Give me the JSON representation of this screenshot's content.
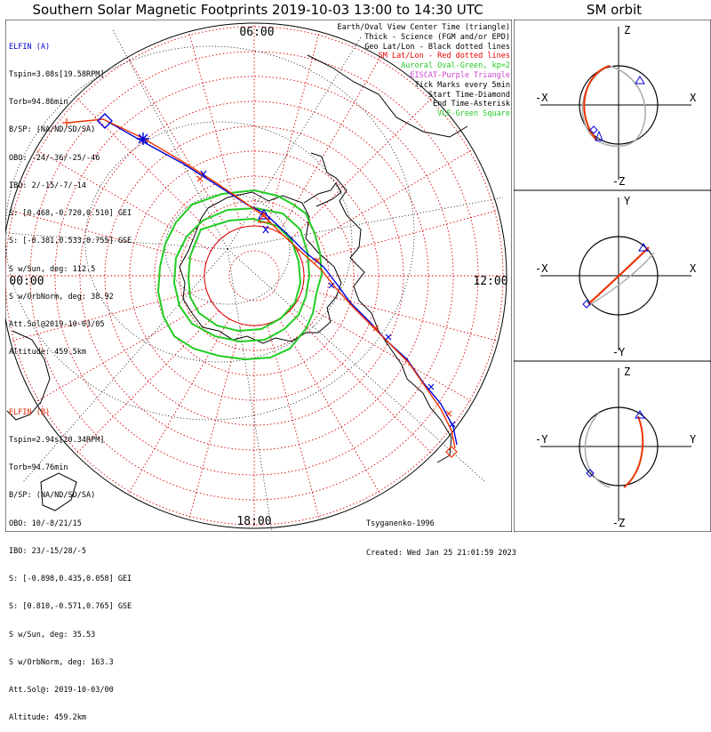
{
  "title": "Southern Solar Magnetic Footprints 2019-10-03 13:00 to 14:30 UTC",
  "side_title": "SM orbit",
  "mlt_labels": {
    "top": "06:00",
    "left": "00:00",
    "right": "12:00",
    "bottom": "18:00"
  },
  "elfin_a": {
    "name": "ELFIN (A)",
    "lines": [
      "Tspin=3.08s[19.58RPM]",
      "Torb=94.86min",
      "B/SP: (NA/ND/SD/SA)",
      "OBO: -24/-36/-25/-46",
      "IBO: 2/-15/-7/-14",
      "S: [0.468,-0.720,0.510] GEI",
      "S: [-0.381,0.533,0.755] GSE",
      "S w/Sun, deg: 112.5",
      "S w/OrbNorm, deg: 38.92",
      "Att.Sol@2019-10-03/05",
      "Altitude: 459.5km"
    ]
  },
  "elfin_b": {
    "name": "ELFIN (B)",
    "lines": [
      "Tspin=2.94s[20.34RPM]",
      "Torb=94.76min",
      "B/SP: (NA/ND/SD/SA)",
      "OBO: 10/-8/21/15",
      "IBO: 23/-15/28/-5",
      "S: [-0.898,0.435,0.058] GEI",
      "S: [0.810,-0.571,0.765] GSE",
      "S w/Sun, deg: 35.53",
      "S w/OrbNorm, deg: 163.3",
      "Att.Sol@: 2019-10-03/00",
      "Altitude: 459.2km"
    ]
  },
  "legend": [
    {
      "text": "Earth/Oval View Center Time (triangle)",
      "color": "#000000"
    },
    {
      "text": "Thick - Science (FGM and/or EPD)",
      "color": "#000000"
    },
    {
      "text": "Geo Lat/Lon - Black dotted lines",
      "color": "#000000"
    },
    {
      "text": "SM Lat/Lon - Red dotted lines",
      "color": "#ee0000"
    },
    {
      "text": "Auroral Oval-Green, kp=2",
      "color": "#22cc22"
    },
    {
      "text": "EISCAT-Purple Triangle",
      "color": "#cc44cc"
    },
    {
      "text": "Tick Marks every 5min",
      "color": "#000000"
    },
    {
      "text": "Start Time-Diamond",
      "color": "#000000"
    },
    {
      "text": "End Time-Asterisk",
      "color": "#000000"
    },
    {
      "text": "VLF-Green Square",
      "color": "#22cc22"
    }
  ],
  "footer": {
    "author": "Tsyganenko-1996",
    "created": "Created: Wed Jan 25 21:01:59 2023"
  },
  "orbit_panels": [
    {
      "top": "Z",
      "bottom": "-Z",
      "left": "-X",
      "right": "X"
    },
    {
      "top": "Y",
      "bottom": "-Y",
      "left": "-X",
      "right": "X"
    },
    {
      "top": "Z",
      "bottom": "-Z",
      "left": "-Y",
      "right": "Y"
    }
  ],
  "colors": {
    "elfin_a": "#0000dd",
    "elfin_b": "#ee3300",
    "oval": "#22cc22",
    "grid": "#dd0000",
    "geo": "#000000",
    "orbit_gray": "#aaaaaa"
  }
}
